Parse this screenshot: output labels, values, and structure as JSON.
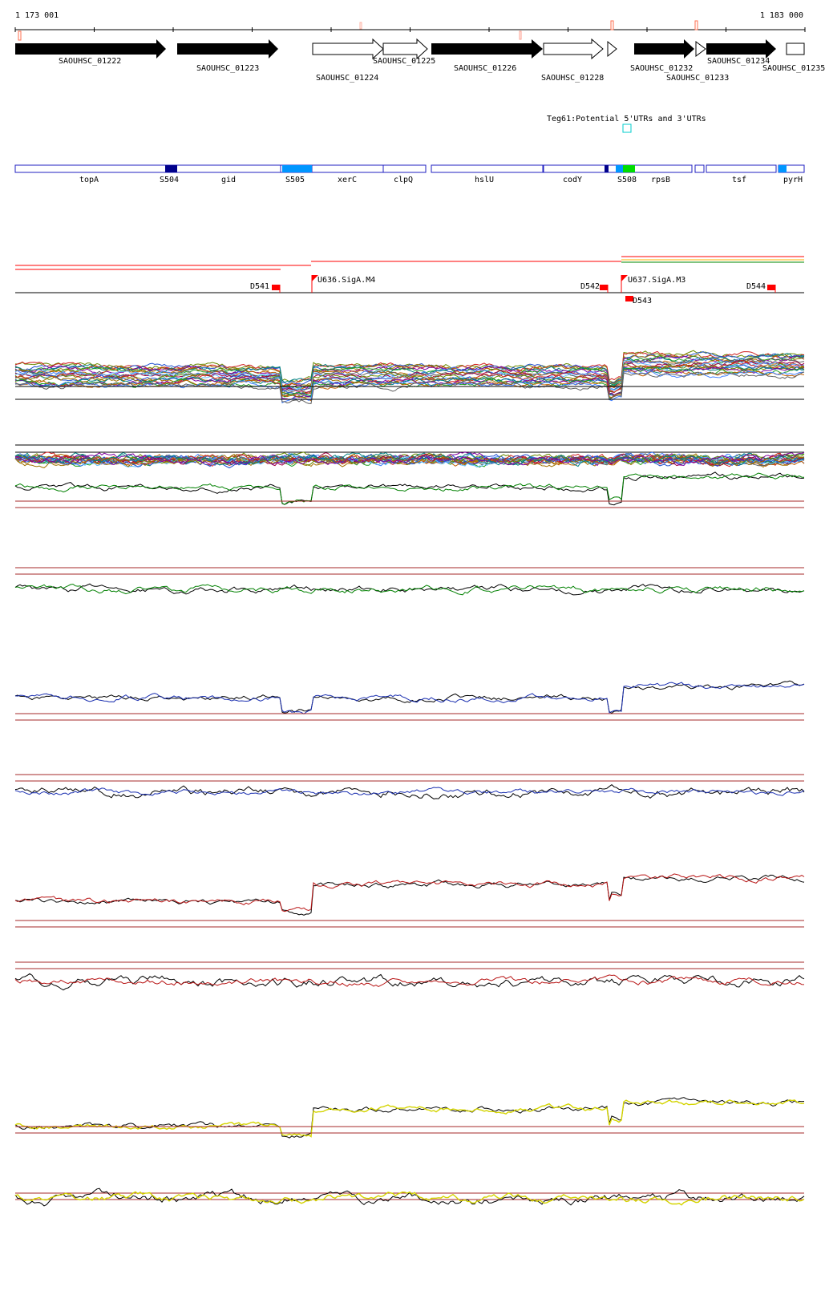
{
  "coords": {
    "start": "1 173 001",
    "end": "1 183 000"
  },
  "genes": [
    {
      "name": "SAOUHSC_01222",
      "filled": true,
      "dir": "right"
    },
    {
      "name": "SAOUHSC_01223",
      "filled": true,
      "dir": "right"
    },
    {
      "name": "SAOUHSC_01224",
      "filled": false,
      "dir": "right"
    },
    {
      "name": "SAOUHSC_01225",
      "filled": false,
      "dir": "right"
    },
    {
      "name": "SAOUHSC_01226",
      "filled": true,
      "dir": "right"
    },
    {
      "name": "SAOUHSC_01228",
      "filled": false,
      "dir": "right"
    },
    {
      "name": "SAOUHSC_01232",
      "filled": true,
      "dir": "right"
    },
    {
      "name": "SAOUHSC_01233",
      "filled": false,
      "dir": "right"
    },
    {
      "name": "SAOUHSC_01234",
      "filled": true,
      "dir": "right"
    },
    {
      "name": "SAOUHSC_01235",
      "filled": false,
      "dir": "right"
    }
  ],
  "teg_label": "Teg61:Potential 5'UTRs and 3'UTRs",
  "annotations": [
    "topA",
    "S504",
    "gid",
    "S505",
    "xerC",
    "clpQ",
    "hslU",
    "codY",
    "S508",
    "rpsB",
    "tsf",
    "pyrH"
  ],
  "promoters": [
    {
      "name": "D541",
      "dir": "left"
    },
    {
      "name": "U636.SigA.M4",
      "dir": "right"
    },
    {
      "name": "D542",
      "dir": "left"
    },
    {
      "name": "U637.SigA.M3",
      "dir": "right"
    },
    {
      "name": "D543",
      "dir": "left"
    },
    {
      "name": "D544",
      "dir": "left"
    }
  ],
  "colors": {
    "gene_fill": "#000000",
    "annot_outline": "#00008b",
    "annot_dark": "#00008b",
    "annot_light": "#0096ff",
    "annot_green": "#00dd00",
    "promoter": "#ff0000",
    "ref_line": "#a52a2a",
    "track_green": "#008000",
    "track_blue": "#1a2fb0",
    "track_red": "#b81414",
    "track_yellow": "#d4d400"
  },
  "tracks": [
    {
      "id": "t1",
      "color": "multi"
    },
    {
      "id": "t2",
      "color": "multi"
    },
    {
      "id": "t3",
      "color": "green"
    },
    {
      "id": "t4",
      "color": "green"
    },
    {
      "id": "t5",
      "color": "blue"
    },
    {
      "id": "t6",
      "color": "blue"
    },
    {
      "id": "t7",
      "color": "red"
    },
    {
      "id": "t8",
      "color": "red"
    },
    {
      "id": "t9",
      "color": "yellow"
    },
    {
      "id": "t10",
      "color": "yellow"
    }
  ]
}
